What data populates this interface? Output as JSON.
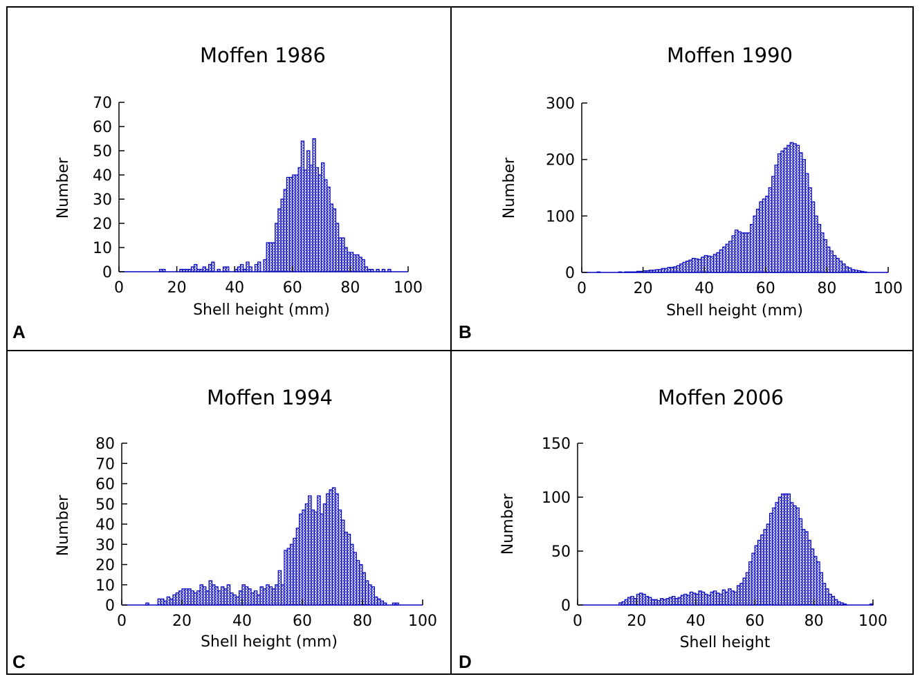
{
  "chart_data": [
    {
      "type": "histogram",
      "panel": "A",
      "title": "Moffen 1986",
      "xlabel": "Shell height (mm)",
      "ylabel": "Number",
      "color": "#0000c0",
      "bins": [
        0,
        1,
        2,
        3,
        4,
        5,
        6,
        7,
        8,
        9,
        10,
        11,
        12,
        13,
        14,
        15,
        16,
        17,
        18,
        19,
        20,
        21,
        22,
        23,
        24,
        25,
        26,
        27,
        28,
        29,
        30,
        31,
        32,
        33,
        34,
        35,
        36,
        37,
        38,
        39,
        40,
        41,
        42,
        43,
        44,
        45,
        46,
        47,
        48,
        49,
        50,
        51,
        52,
        53,
        54,
        55,
        56,
        57,
        58,
        59,
        60,
        61,
        62,
        63,
        64,
        65,
        66,
        67,
        68,
        69,
        70,
        71,
        72,
        73,
        74,
        75,
        76,
        77,
        78,
        79,
        80,
        81,
        82,
        83,
        84,
        85,
        86,
        87,
        88,
        89,
        90,
        91,
        92,
        93,
        94,
        95,
        96,
        97,
        98,
        99,
        100
      ],
      "values": [
        0,
        0,
        0,
        0,
        0,
        0,
        0,
        0,
        0,
        0,
        0,
        0,
        0,
        0,
        1,
        1,
        0,
        0,
        0,
        0,
        0,
        1,
        1,
        1,
        1,
        2,
        3,
        1,
        1,
        2,
        1,
        3,
        4,
        0,
        1,
        0,
        2,
        2,
        0,
        0,
        1,
        2,
        3,
        1,
        4,
        2,
        0,
        3,
        4,
        0,
        5,
        12,
        12,
        12,
        20,
        26,
        30,
        34,
        39,
        39,
        40,
        40,
        43,
        54,
        42,
        50,
        44,
        55,
        43,
        40,
        45,
        38,
        35,
        28,
        26,
        20,
        14,
        14,
        10,
        8,
        8,
        7,
        7,
        6,
        5,
        2,
        1,
        1,
        0,
        1,
        0,
        1,
        0,
        1,
        0,
        0,
        0,
        0,
        0,
        0
      ],
      "xlim": [
        0,
        100
      ],
      "ylim": [
        0,
        70
      ],
      "xticks": [
        0,
        20,
        40,
        60,
        80,
        100
      ],
      "yticks": [
        0,
        10,
        20,
        30,
        40,
        50,
        60,
        70
      ]
    },
    {
      "type": "histogram",
      "panel": "B",
      "title": "Moffen 1990",
      "xlabel": "Shell height (mm)",
      "ylabel": "Number",
      "color": "#0000c0",
      "bins": [
        0,
        1,
        2,
        3,
        4,
        5,
        6,
        7,
        8,
        9,
        10,
        11,
        12,
        13,
        14,
        15,
        16,
        17,
        18,
        19,
        20,
        21,
        22,
        23,
        24,
        25,
        26,
        27,
        28,
        29,
        30,
        31,
        32,
        33,
        34,
        35,
        36,
        37,
        38,
        39,
        40,
        41,
        42,
        43,
        44,
        45,
        46,
        47,
        48,
        49,
        50,
        51,
        52,
        53,
        54,
        55,
        56,
        57,
        58,
        59,
        60,
        61,
        62,
        63,
        64,
        65,
        66,
        67,
        68,
        69,
        70,
        71,
        72,
        73,
        74,
        75,
        76,
        77,
        78,
        79,
        80,
        81,
        82,
        83,
        84,
        85,
        86,
        87,
        88,
        89,
        90,
        91,
        92,
        93,
        94,
        95,
        96,
        97,
        98,
        99,
        100
      ],
      "values": [
        0,
        0,
        0,
        0,
        0,
        1,
        0,
        0,
        0,
        0,
        0,
        0,
        1,
        0,
        1,
        1,
        1,
        1,
        2,
        2,
        3,
        3,
        4,
        4,
        5,
        5,
        7,
        7,
        9,
        9,
        10,
        12,
        15,
        18,
        20,
        22,
        25,
        24,
        23,
        27,
        30,
        29,
        28,
        32,
        35,
        40,
        45,
        50,
        55,
        65,
        75,
        72,
        70,
        70,
        70,
        85,
        100,
        112,
        125,
        130,
        135,
        150,
        170,
        190,
        210,
        215,
        220,
        225,
        230,
        228,
        225,
        212,
        200,
        175,
        150,
        125,
        100,
        85,
        70,
        58,
        45,
        38,
        30,
        25,
        20,
        15,
        10,
        8,
        5,
        4,
        3,
        2,
        1,
        0,
        0,
        0,
        0,
        0,
        0,
        0
      ],
      "xlim": [
        0,
        100
      ],
      "ylim": [
        0,
        300
      ],
      "xticks": [
        0,
        20,
        40,
        60,
        80,
        100
      ],
      "yticks": [
        0,
        100,
        200,
        300
      ]
    },
    {
      "type": "histogram",
      "panel": "C",
      "title": "Moffen 1994",
      "xlabel": "Shell height (mm)",
      "ylabel": "Number",
      "color": "#0000c0",
      "bins": [
        0,
        1,
        2,
        3,
        4,
        5,
        6,
        7,
        8,
        9,
        10,
        11,
        12,
        13,
        14,
        15,
        16,
        17,
        18,
        19,
        20,
        21,
        22,
        23,
        24,
        25,
        26,
        27,
        28,
        29,
        30,
        31,
        32,
        33,
        34,
        35,
        36,
        37,
        38,
        39,
        40,
        41,
        42,
        43,
        44,
        45,
        46,
        47,
        48,
        49,
        50,
        51,
        52,
        53,
        54,
        55,
        56,
        57,
        58,
        59,
        60,
        61,
        62,
        63,
        64,
        65,
        66,
        67,
        68,
        69,
        70,
        71,
        72,
        73,
        74,
        75,
        76,
        77,
        78,
        79,
        80,
        81,
        82,
        83,
        84,
        85,
        86,
        87,
        88,
        89,
        90,
        91,
        92,
        93,
        94,
        95,
        96,
        97,
        98,
        99,
        100
      ],
      "values": [
        0,
        0,
        0,
        0,
        0,
        0,
        0,
        0,
        1,
        0,
        0,
        0,
        3,
        3,
        2,
        4,
        3,
        5,
        6,
        7,
        8,
        8,
        8,
        7,
        6,
        7,
        10,
        9,
        7,
        12,
        10,
        9,
        7,
        9,
        8,
        10,
        6,
        5,
        4,
        7,
        10,
        9,
        8,
        6,
        7,
        5,
        9,
        8,
        10,
        9,
        8,
        10,
        17,
        10,
        27,
        28,
        30,
        33,
        38,
        45,
        47,
        50,
        54,
        47,
        46,
        54,
        45,
        50,
        55,
        57,
        58,
        55,
        47,
        42,
        36,
        35,
        30,
        26,
        22,
        20,
        16,
        12,
        10,
        9,
        4,
        3,
        2,
        1,
        0,
        0,
        1,
        1,
        0,
        0,
        0,
        0,
        0,
        0,
        0,
        0
      ],
      "xlim": [
        0,
        100
      ],
      "ylim": [
        0,
        80
      ],
      "xticks": [
        0,
        20,
        40,
        60,
        80,
        100
      ],
      "yticks": [
        0,
        10,
        20,
        30,
        40,
        50,
        60,
        70,
        80
      ]
    },
    {
      "type": "histogram",
      "panel": "D",
      "title": "Moffen 2006",
      "xlabel": "Shell height",
      "ylabel": "Number",
      "color": "#0000c0",
      "bins": [
        0,
        1,
        2,
        3,
        4,
        5,
        6,
        7,
        8,
        9,
        10,
        11,
        12,
        13,
        14,
        15,
        16,
        17,
        18,
        19,
        20,
        21,
        22,
        23,
        24,
        25,
        26,
        27,
        28,
        29,
        30,
        31,
        32,
        33,
        34,
        35,
        36,
        37,
        38,
        39,
        40,
        41,
        42,
        43,
        44,
        45,
        46,
        47,
        48,
        49,
        50,
        51,
        52,
        53,
        54,
        55,
        56,
        57,
        58,
        59,
        60,
        61,
        62,
        63,
        64,
        65,
        66,
        67,
        68,
        69,
        70,
        71,
        72,
        73,
        74,
        75,
        76,
        77,
        78,
        79,
        80,
        81,
        82,
        83,
        84,
        85,
        86,
        87,
        88,
        89,
        90,
        91,
        92,
        93,
        94,
        95,
        96,
        97,
        98,
        99,
        100
      ],
      "values": [
        0,
        0,
        0,
        0,
        0,
        0,
        0,
        0,
        0,
        0,
        0,
        0,
        0,
        0,
        2,
        3,
        5,
        7,
        8,
        6,
        10,
        11,
        10,
        8,
        7,
        5,
        5,
        4,
        6,
        5,
        6,
        7,
        8,
        6,
        7,
        9,
        10,
        9,
        12,
        11,
        10,
        13,
        12,
        10,
        9,
        12,
        13,
        11,
        10,
        14,
        12,
        15,
        13,
        12,
        18,
        20,
        25,
        30,
        40,
        48,
        55,
        60,
        65,
        70,
        75,
        85,
        90,
        95,
        100,
        103,
        103,
        103,
        95,
        92,
        90,
        80,
        70,
        68,
        60,
        52,
        45,
        40,
        30,
        20,
        15,
        10,
        8,
        5,
        3,
        2,
        1,
        0,
        0,
        0,
        0,
        0,
        0,
        0,
        0,
        1
      ],
      "xlim": [
        0,
        100
      ],
      "ylim": [
        0,
        150
      ],
      "xticks": [
        0,
        20,
        40,
        60,
        80,
        100
      ],
      "yticks": [
        0,
        50,
        100,
        150
      ]
    }
  ]
}
